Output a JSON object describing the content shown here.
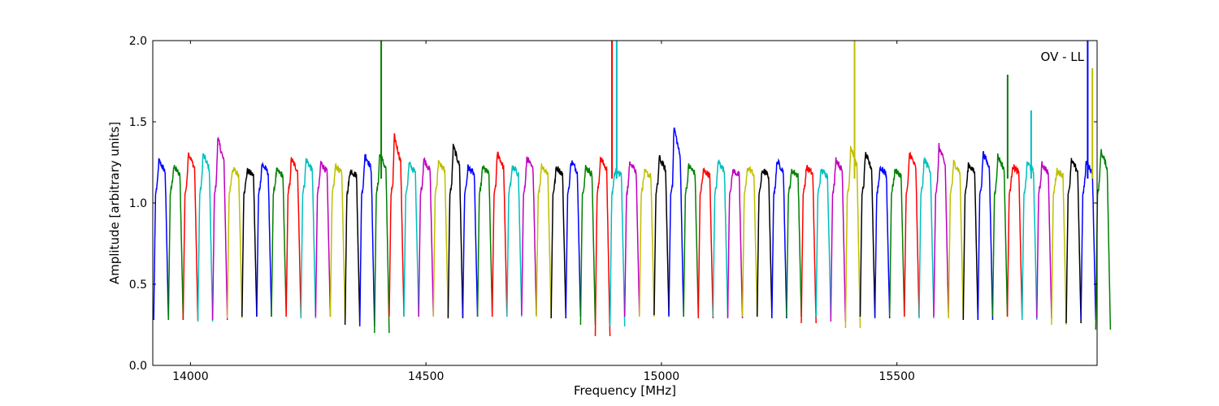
{
  "chart_data": {
    "type": "line",
    "xlabel": "Frequency [MHz]",
    "ylabel": "Amplitude [arbitrary units]",
    "annotation": "OV - LL",
    "xlim": [
      13920,
      15925
    ],
    "ylim": [
      0.0,
      2.0
    ],
    "x_ticks": [
      14000,
      14500,
      15000,
      15500
    ],
    "x_tick_labels": [
      "14000",
      "14500",
      "15000",
      "15500"
    ],
    "y_ticks": [
      0.0,
      0.5,
      1.0,
      1.5,
      2.0
    ],
    "y_tick_labels": [
      "0.0",
      "0.5",
      "1.0",
      "1.5",
      "2.0"
    ],
    "grid": false,
    "legend": "none",
    "color_cycle": [
      "#0000ff",
      "#008000",
      "#ff0000",
      "#00bfbf",
      "#bf00bf",
      "#bfbf00",
      "#000000"
    ],
    "channel_width_mhz": 31.25,
    "first_channel_start_mhz": 13922,
    "channel_peaks": [
      1.26,
      1.22,
      1.31,
      1.3,
      1.4,
      1.21,
      1.2,
      1.24,
      1.2,
      1.27,
      1.27,
      1.25,
      1.23,
      1.2,
      1.3,
      1.3,
      1.41,
      1.24,
      1.27,
      1.26,
      1.35,
      1.22,
      1.22,
      1.31,
      1.22,
      1.28,
      1.23,
      1.22,
      1.26,
      1.22,
      1.28,
      1.2,
      1.26,
      1.19,
      1.28,
      1.47,
      1.23,
      1.2,
      1.26,
      1.2,
      1.22,
      1.2,
      1.26,
      1.2,
      1.22,
      1.2,
      1.27,
      1.35,
      1.3,
      1.22,
      1.2,
      1.31,
      1.27,
      1.35,
      1.25,
      1.24,
      1.31,
      1.29,
      1.23,
      1.25,
      1.24,
      1.2,
      1.26,
      1.25,
      1.32
    ],
    "channel_troughs": [
      0.28,
      0.28,
      0.28,
      0.27,
      0.28,
      0.29,
      0.3,
      0.3,
      0.3,
      0.3,
      0.29,
      0.3,
      0.3,
      0.25,
      0.24,
      0.2,
      0.3,
      0.3,
      0.3,
      0.3,
      0.29,
      0.3,
      0.3,
      0.3,
      0.3,
      0.31,
      0.3,
      0.29,
      0.3,
      0.25,
      0.18,
      0.24,
      0.3,
      0.3,
      0.31,
      0.3,
      0.3,
      0.29,
      0.3,
      0.29,
      0.3,
      0.3,
      0.29,
      0.3,
      0.26,
      0.3,
      0.27,
      0.23,
      0.3,
      0.29,
      0.3,
      0.3,
      0.29,
      0.3,
      0.29,
      0.28,
      0.28,
      0.3,
      0.3,
      0.28,
      0.29,
      0.25,
      0.26,
      0.28,
      0.22
    ],
    "spikes": [
      {
        "x": 14405,
        "y": 2.0,
        "color": "#008000"
      },
      {
        "x": 14895,
        "y": 2.0,
        "color": "#ff0000"
      },
      {
        "x": 14905,
        "y": 2.0,
        "color": "#00bfbf"
      },
      {
        "x": 15410,
        "y": 2.0,
        "color": "#bfbf00"
      },
      {
        "x": 15735,
        "y": 1.79,
        "color": "#008000"
      },
      {
        "x": 15785,
        "y": 1.57,
        "color": "#00bfbf"
      },
      {
        "x": 15905,
        "y": 2.0,
        "color": "#0000ff"
      },
      {
        "x": 15915,
        "y": 1.83,
        "color": "#bfbf00"
      }
    ]
  }
}
